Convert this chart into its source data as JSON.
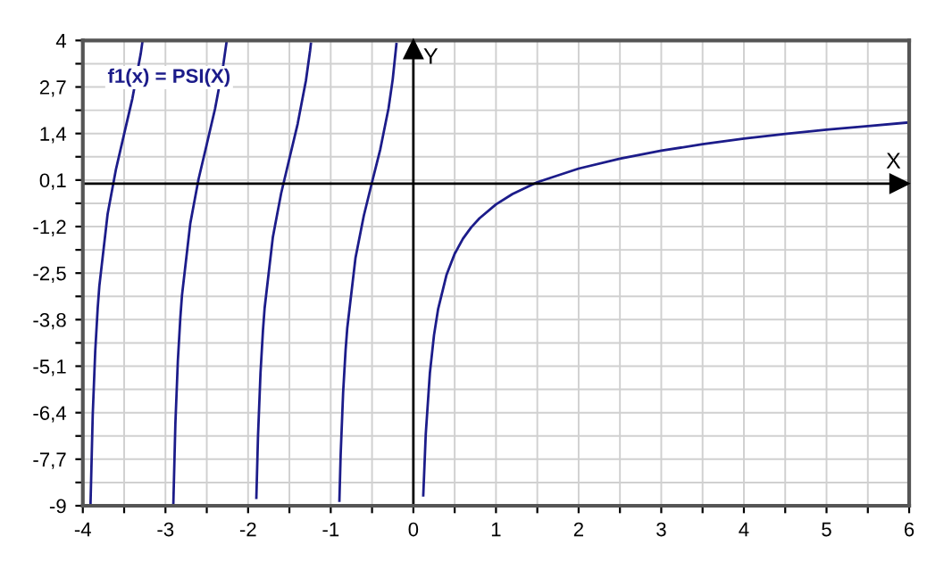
{
  "chart_data": {
    "type": "line",
    "annotations": [
      "f1(x) = PSI(X)"
    ],
    "series": [
      {
        "color": "#1c1c8a",
        "x": [
          -3.907,
          -3.88,
          -3.85,
          -3.82,
          -3.8,
          -3.7,
          -3.6,
          -3.5,
          -3.4,
          -3.3,
          -3.28
        ],
        "values": [
          -8.97,
          -6.45,
          -4.69,
          -3.48,
          -2.86,
          -0.85,
          0.39,
          1.39,
          2.38,
          3.62,
          3.94
        ]
      },
      {
        "color": "#1c1c8a",
        "x": [
          -2.905,
          -2.88,
          -2.85,
          -2.82,
          -2.8,
          -2.7,
          -2.6,
          -2.5,
          -2.4,
          -2.3,
          -2.26
        ],
        "values": [
          -8.99,
          -6.71,
          -4.95,
          -3.75,
          -3.12,
          -1.12,
          0.12,
          1.1,
          2.09,
          3.32,
          3.97
        ]
      },
      {
        "color": "#1c1c8a",
        "x": [
          -1.9,
          -1.88,
          -1.85,
          -1.82,
          -1.8,
          -1.7,
          -1.6,
          -1.5,
          -1.4,
          -1.3,
          -1.25,
          -1.24
        ],
        "values": [
          -8.78,
          -7.06,
          -5.3,
          -4.1,
          -3.48,
          -1.49,
          -0.27,
          0.7,
          1.67,
          2.88,
          3.71,
          3.91
        ]
      },
      {
        "color": "#1c1c8a",
        "x": [
          -0.895,
          -0.88,
          -0.85,
          -0.82,
          -0.8,
          -0.7,
          -0.6,
          -0.5,
          -0.4,
          -0.3,
          -0.25,
          -0.205
        ],
        "values": [
          -8.86,
          -7.59,
          -5.84,
          -4.65,
          -4.04,
          -2.07,
          -0.9,
          0.04,
          0.96,
          2.11,
          2.91,
          3.9
        ]
      },
      {
        "color": "#1c1c8a",
        "x": [
          0.12,
          0.15,
          0.2,
          0.25,
          0.3,
          0.4,
          0.5,
          0.6,
          0.7,
          0.8,
          1,
          1.2,
          1.5,
          2,
          2.5,
          3,
          3.5,
          4,
          4.5,
          5,
          5.5,
          6
        ],
        "values": [
          -8.71,
          -7.0,
          -5.29,
          -4.23,
          -3.5,
          -2.56,
          -1.96,
          -1.54,
          -1.22,
          -0.97,
          -0.58,
          -0.29,
          0.04,
          0.42,
          0.7,
          0.92,
          1.1,
          1.26,
          1.39,
          1.51,
          1.61,
          1.71
        ]
      }
    ],
    "xlim": [
      -4,
      6
    ],
    "xticks": [
      -4,
      {
        "value": -3.5,
        "label": null
      },
      -3,
      {
        "value": -2.5,
        "label": null
      },
      -2,
      {
        "value": -1.5,
        "label": null
      },
      -1,
      {
        "value": -0.5,
        "label": null
      },
      0,
      {
        "value": 0.5,
        "label": null
      },
      1,
      {
        "value": 1.5,
        "label": null
      },
      2,
      {
        "value": 2.5,
        "label": null
      },
      3,
      {
        "value": 3.5,
        "label": null
      },
      4,
      {
        "value": 4.5,
        "label": null
      },
      5,
      {
        "value": 5.5,
        "label": null
      },
      6
    ],
    "ylim": [
      -9,
      4
    ],
    "yticks": [
      {
        "value": -9,
        "label": "-9"
      },
      {
        "value": -8.35,
        "label": null
      },
      {
        "value": -7.7,
        "label": "-7,7"
      },
      {
        "value": -7.05,
        "label": null
      },
      {
        "value": -6.4,
        "label": "-6,4"
      },
      {
        "value": -5.75,
        "label": null
      },
      {
        "value": -5.1,
        "label": "-5,1"
      },
      {
        "value": -4.45,
        "label": null
      },
      {
        "value": -3.8,
        "label": "-3,8"
      },
      {
        "value": -3.15,
        "label": null
      },
      {
        "value": -2.5,
        "label": "-2,5"
      },
      {
        "value": -1.85,
        "label": null
      },
      {
        "value": -1.2,
        "label": "-1,2"
      },
      {
        "value": -0.55,
        "label": null
      },
      {
        "value": 0.1,
        "label": "0,1"
      },
      {
        "value": 0.75,
        "label": null
      },
      {
        "value": 1.4,
        "label": "1,4"
      },
      {
        "value": 2.05,
        "label": null
      },
      {
        "value": 2.7,
        "label": "2,7"
      },
      {
        "value": 3.35,
        "label": null
      },
      {
        "value": 4,
        "label": "4"
      }
    ],
    "ref_lines": [
      {
        "axis": "x",
        "value": 0,
        "label": "Y",
        "color": "#000000"
      },
      {
        "axis": "y",
        "value": 0,
        "label": "X",
        "color": "#000000"
      }
    ],
    "grid": true,
    "marker": "none",
    "line_style": "solid"
  }
}
